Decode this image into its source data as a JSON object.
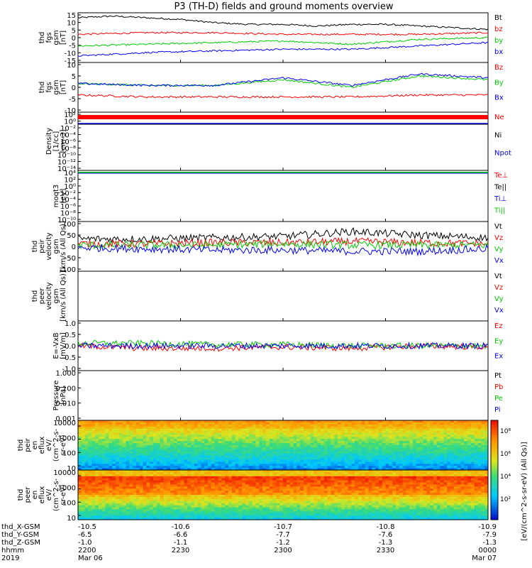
{
  "title": "P3 (TH-D) fields and ground moments overview",
  "colors": {
    "black": "#000000",
    "red": "#ff0000",
    "green": "#00cc00",
    "blue": "#0000ff",
    "greenlight": "#33dd33"
  },
  "chart_data": [
    {
      "id": "fgs-gsm",
      "type": "line",
      "ylabel": [
        "thd",
        "fgs",
        "gsm",
        "[nT]"
      ],
      "yticks": [
        "15",
        "10",
        "5",
        "0",
        "-5",
        "-10",
        "-15"
      ],
      "ylim": [
        -15,
        15
      ],
      "legend": [
        {
          "label": "Bt",
          "color": "black"
        },
        {
          "label": "bz",
          "color": "red"
        },
        {
          "label": "by",
          "color": "green"
        },
        {
          "label": "bx",
          "color": "blue"
        }
      ],
      "series": [
        {
          "name": "Bt",
          "color": "black",
          "x": [
            0,
            10,
            20,
            30,
            40,
            50,
            60,
            70,
            80,
            90,
            100,
            110,
            120
          ],
          "y": [
            12,
            13,
            12,
            11,
            9,
            8,
            8,
            7,
            8,
            8,
            7,
            6,
            5
          ]
        },
        {
          "name": "bz",
          "color": "red",
          "x": [
            0,
            20,
            40,
            60,
            80,
            100,
            120
          ],
          "y": [
            2,
            3,
            3,
            2,
            2,
            2,
            3
          ]
        },
        {
          "name": "by",
          "color": "green",
          "x": [
            0,
            20,
            40,
            60,
            80,
            100,
            120
          ],
          "y": [
            -5,
            -4,
            -3,
            -2,
            -4,
            -1,
            0
          ]
        },
        {
          "name": "bx",
          "color": "blue",
          "x": [
            0,
            20,
            40,
            60,
            80,
            100,
            120
          ],
          "y": [
            -11,
            -9,
            -8,
            -7,
            -7,
            -5,
            -3
          ]
        }
      ]
    },
    {
      "id": "fgs-gsm-2",
      "type": "line",
      "ylabel": [
        "thd",
        "fgs",
        "gsm",
        "[nT]"
      ],
      "yticks": [
        "10",
        "5",
        "0",
        "-5",
        "-10"
      ],
      "ylim": [
        -13,
        13
      ],
      "legend": [
        {
          "label": "Bz",
          "color": "red"
        },
        {
          "label": "By",
          "color": "green"
        },
        {
          "label": "Bx",
          "color": "blue"
        }
      ],
      "series": [
        {
          "name": "Bz",
          "color": "red",
          "x": [
            0,
            20,
            40,
            60,
            80,
            100,
            120
          ],
          "y": [
            -4,
            -5,
            -5,
            -5,
            -5,
            -4,
            -4
          ]
        },
        {
          "name": "By",
          "color": "green",
          "x": [
            0,
            20,
            40,
            60,
            80,
            100,
            120
          ],
          "y": [
            2,
            1,
            1,
            4,
            0,
            6,
            4
          ]
        },
        {
          "name": "Bx",
          "color": "blue",
          "x": [
            0,
            20,
            40,
            60,
            80,
            100,
            120
          ],
          "y": [
            2,
            1,
            1,
            5,
            1,
            7,
            5
          ]
        }
      ]
    },
    {
      "id": "density",
      "type": "line",
      "ylabel": [
        "Density",
        "[1/cc]",
        "[cm-3]"
      ],
      "yticks": [
        "10²",
        "10⁰",
        "10⁻²",
        "10⁻⁴",
        "10⁻⁶",
        "10⁻⁸",
        "10⁻¹⁰",
        "10⁻¹²",
        "10⁻¹⁴"
      ],
      "legend": [
        {
          "label": "Ne",
          "color": "red"
        },
        {
          "label": "Ni",
          "color": "black"
        },
        {
          "label": "Npot",
          "color": "blue"
        }
      ]
    },
    {
      "id": "temperature",
      "type": "line",
      "ylabel": [
        "moqt3",
        "[eV]"
      ],
      "yticks": [
        "10⁴",
        "10²",
        "10⁰",
        "10⁻²",
        "10⁻⁴",
        "10⁻⁶",
        "10⁻⁸",
        "10⁻¹⁰"
      ],
      "legend": [
        {
          "label": "Te⊥",
          "color": "red"
        },
        {
          "label": "Te||",
          "color": "black"
        },
        {
          "label": "Ti⊥",
          "color": "blue"
        },
        {
          "label": "Ti||",
          "color": "green"
        }
      ]
    },
    {
      "id": "peir-velocity",
      "type": "line",
      "ylabel": [
        "thd",
        "peir",
        "velocity",
        "gsm",
        "[km/s (All Qs)]"
      ],
      "yticks": [
        "100",
        "50",
        "0",
        "-50",
        "-100"
      ],
      "ylim": [
        -100,
        100
      ],
      "legend": [
        {
          "label": "Vt",
          "color": "black"
        },
        {
          "label": "Vz",
          "color": "red"
        },
        {
          "label": "Vy",
          "color": "green"
        },
        {
          "label": "Vx",
          "color": "blue"
        }
      ],
      "series": [
        {
          "name": "Vt",
          "color": "black",
          "x": [
            0,
            20,
            40,
            60,
            80,
            100,
            120
          ],
          "y": [
            30,
            30,
            35,
            40,
            60,
            45,
            35
          ]
        },
        {
          "name": "Vz",
          "color": "red",
          "x": [
            0,
            20,
            40,
            60,
            80,
            100,
            120
          ],
          "y": [
            10,
            10,
            15,
            15,
            20,
            15,
            10
          ]
        },
        {
          "name": "Vy",
          "color": "green",
          "x": [
            0,
            20,
            40,
            60,
            80,
            100,
            120
          ],
          "y": [
            5,
            5,
            5,
            10,
            5,
            5,
            5
          ]
        },
        {
          "name": "Vx",
          "color": "blue",
          "x": [
            0,
            20,
            40,
            60,
            80,
            100,
            120
          ],
          "y": [
            -5,
            -10,
            -15,
            -15,
            -20,
            -20,
            -10
          ]
        }
      ]
    },
    {
      "id": "peer-velocity",
      "type": "line",
      "ylabel": [
        "thd",
        "peer",
        "velocity",
        "gsm",
        "[km/s (All Qs)]"
      ],
      "legend": [
        {
          "label": "Vt",
          "color": "black"
        },
        {
          "label": "Vz",
          "color": "red"
        },
        {
          "label": "Vy",
          "color": "green"
        },
        {
          "label": "Vx",
          "color": "blue"
        }
      ]
    },
    {
      "id": "efield",
      "type": "line",
      "ylabel": [
        "E=-VxB",
        "[mV/m]"
      ],
      "yticks": [
        "1.0",
        "0.5",
        "0.0",
        "-0.5",
        "-1.0"
      ],
      "ylim": [
        -1,
        1
      ],
      "legend": [
        {
          "label": "Ez",
          "color": "red"
        },
        {
          "label": "Ey",
          "color": "green"
        },
        {
          "label": "Ex",
          "color": "blue"
        }
      ],
      "series": [
        {
          "name": "Ez",
          "color": "red",
          "x": [
            0,
            20,
            40,
            60,
            80,
            100,
            120
          ],
          "y": [
            0,
            -0.1,
            -0.1,
            -0.05,
            -0.1,
            0,
            -0.05
          ]
        },
        {
          "name": "Ey",
          "color": "green",
          "x": [
            0,
            20,
            40,
            60,
            80,
            100,
            120
          ],
          "y": [
            0.1,
            0.1,
            0.05,
            0.05,
            0,
            0,
            0
          ]
        },
        {
          "name": "Ex",
          "color": "blue",
          "x": [
            0,
            20,
            40,
            60,
            80,
            100,
            120
          ],
          "y": [
            0,
            0,
            0,
            0,
            0,
            0,
            0
          ]
        }
      ]
    },
    {
      "id": "pressure",
      "type": "line",
      "ylabel": [
        "Pressure",
        "[nPa]"
      ],
      "yticks": [
        "1.000",
        "0.100",
        "0.010",
        "0.001"
      ],
      "legend": [
        {
          "label": "Pt",
          "color": "black"
        },
        {
          "label": "Pb",
          "color": "red"
        },
        {
          "label": "Pe",
          "color": "green"
        },
        {
          "label": "Pi",
          "color": "blue"
        }
      ],
      "series": [
        {
          "name": "Pt",
          "color": "black",
          "x": [
            0,
            20,
            40,
            60,
            80,
            100,
            120
          ],
          "y": [
            0.25,
            0.28,
            0.22,
            0.22,
            0.2,
            0.2,
            0.2
          ]
        },
        {
          "name": "Pb",
          "color": "red",
          "x": [
            0,
            20,
            40,
            60,
            80,
            100,
            120
          ],
          "y": [
            0.05,
            0.05,
            0.03,
            0.03,
            0.01,
            0.004,
            0.004
          ]
        },
        {
          "name": "Pe",
          "color": "green",
          "x": [
            0,
            20,
            40,
            60,
            80,
            100,
            120
          ],
          "y": [
            0.16,
            0.16,
            0.13,
            0.12,
            0.1,
            0.11,
            0.12
          ]
        },
        {
          "name": "Pi",
          "color": "blue",
          "x": [
            0,
            20,
            40,
            60,
            80,
            100,
            120
          ],
          "y": [
            0.17,
            0.17,
            0.16,
            0.16,
            0.16,
            0.16,
            0.16
          ]
        }
      ]
    },
    {
      "id": "peir-en-eflux",
      "type": "heatmap",
      "ylabel": [
        "thd",
        "peir",
        "en",
        "eflux",
        "eV/",
        "(cm^2-s-",
        "sr-eV)"
      ],
      "yticks": [
        "10000",
        "1000",
        "100",
        "10"
      ]
    },
    {
      "id": "peer-en-eflux",
      "type": "heatmap",
      "ylabel": [
        "thd",
        "peer",
        "en",
        "eflux",
        "eV/",
        "(cm^2-s-",
        "sr-eV)"
      ],
      "yticks": [
        "10000",
        "1000",
        "100",
        "10"
      ]
    }
  ],
  "colorbar": {
    "label": "[eV/(cm^2-s-sr-eV) (All Qs)]",
    "ticks": [
      "10⁸",
      "10⁶",
      "10⁴",
      "10²"
    ]
  },
  "xaxis": {
    "rows": [
      {
        "label": "thd_X-GSM",
        "values": [
          "-10.5",
          "-10.6",
          "-10.7",
          "-10.8",
          "-10.9"
        ]
      },
      {
        "label": "thd_Y-GSM",
        "values": [
          "-6.5",
          "-6.6",
          "-7.7",
          "-7.6",
          "-7.9"
        ]
      },
      {
        "label": "thd_Z-GSM",
        "values": [
          "-1.0",
          "-1.1",
          "-1.2",
          "-1.3",
          "-1.3"
        ]
      },
      {
        "label": "hhmm",
        "values": [
          "2200",
          "2230",
          "2300",
          "2330",
          "0000"
        ]
      },
      {
        "label": "2019",
        "values": [
          "Mar 06",
          "",
          "",
          "",
          "Mar 07"
        ]
      }
    ]
  }
}
